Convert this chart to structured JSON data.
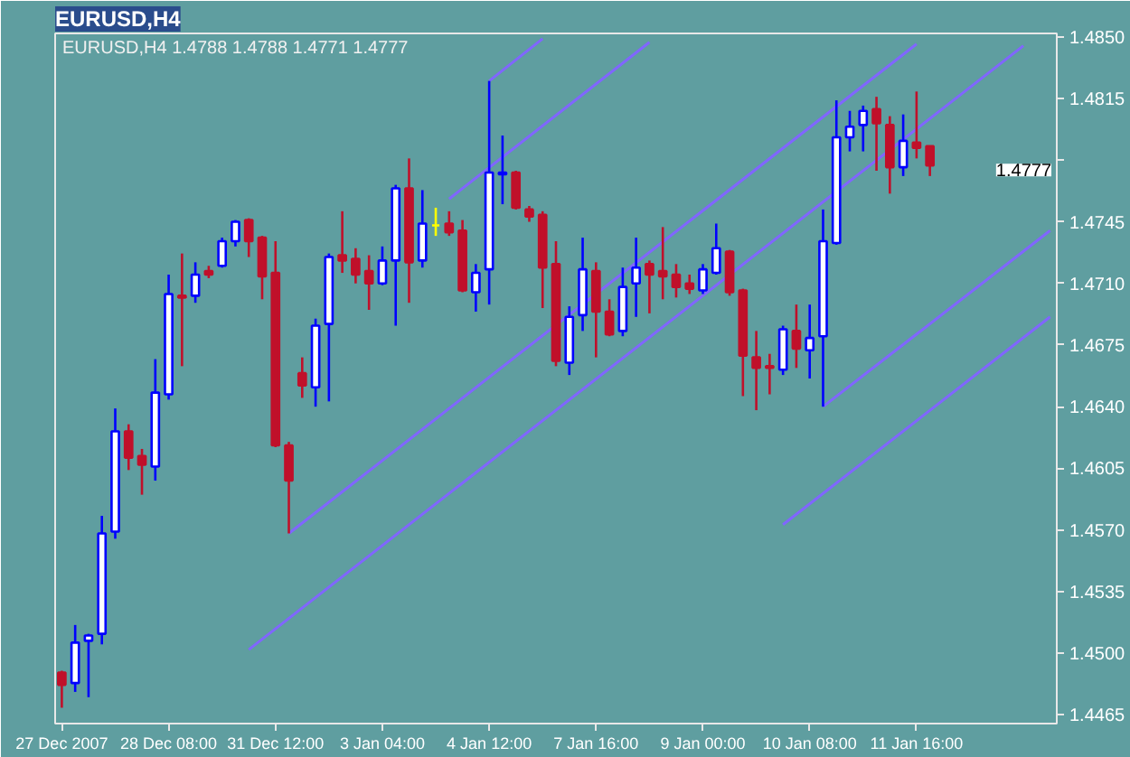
{
  "chart_data": {
    "type": "candlestick",
    "title": "EURUSD,H4",
    "annotations": [
      "EURUSD,H4  1.4788 1.4788 1.4771 1.4777",
      "1.4777"
    ],
    "categories": [
      "27 Dec 2007",
      null,
      null,
      null,
      null,
      null,
      null,
      null,
      "28 Dec 08:00",
      null,
      null,
      null,
      null,
      null,
      null,
      null,
      "31 Dec 12:00",
      null,
      null,
      null,
      null,
      null,
      null,
      null,
      "3 Jan 04:00",
      null,
      null,
      null,
      null,
      null,
      null,
      null,
      "4 Jan 12:00",
      null,
      null,
      null,
      null,
      null,
      null,
      null,
      "7 Jan 16:00",
      null,
      null,
      null,
      null,
      null,
      null,
      null,
      "9 Jan 00:00",
      null,
      null,
      null,
      null,
      null,
      null,
      null,
      "10 Jan 08:00",
      null,
      null,
      null,
      null,
      null,
      null,
      null,
      "11 Jan 16:00",
      null,
      null,
      null,
      null,
      null,
      null,
      null,
      null,
      null,
      null
    ],
    "ohlc": [
      [
        1.4489,
        1.449,
        1.4469,
        1.4482
      ],
      [
        1.4483,
        1.4516,
        1.4478,
        1.4506
      ],
      [
        1.4507,
        1.4511,
        1.4475,
        1.451
      ],
      [
        1.4511,
        1.4578,
        1.4505,
        1.4568
      ],
      [
        1.4569,
        1.4639,
        1.4565,
        1.4626
      ],
      [
        1.4626,
        1.463,
        1.4604,
        1.4611
      ],
      [
        1.4612,
        1.4616,
        1.459,
        1.4607
      ],
      [
        1.4606,
        1.4667,
        1.4598,
        1.4648
      ],
      [
        1.4647,
        1.4715,
        1.4644,
        1.4704
      ],
      [
        1.4703,
        1.4727,
        1.4663,
        1.4702
      ],
      [
        1.4703,
        1.4722,
        1.4699,
        1.4715
      ],
      [
        1.4717,
        1.472,
        1.4713,
        1.4715
      ],
      [
        1.472,
        1.4736,
        1.4719,
        1.4734
      ],
      [
        1.4734,
        1.4746,
        1.4731,
        1.4745
      ],
      [
        1.4746,
        1.4747,
        1.4725,
        1.4734
      ],
      [
        1.4736,
        1.4737,
        1.4701,
        1.4714
      ],
      [
        1.4716,
        1.4734,
        1.4617,
        1.4618
      ],
      [
        1.4618,
        1.462,
        1.4568,
        1.4598
      ],
      [
        1.4659,
        1.4668,
        1.4645,
        1.4652
      ],
      [
        1.4651,
        1.469,
        1.464,
        1.4686
      ],
      [
        1.4687,
        1.4727,
        1.4643,
        1.4725
      ],
      [
        1.4726,
        1.4751,
        1.4716,
        1.4723
      ],
      [
        1.4724,
        1.473,
        1.471,
        1.4715
      ],
      [
        1.4717,
        1.4726,
        1.4695,
        1.471
      ],
      [
        1.471,
        1.4731,
        1.4709,
        1.4723
      ],
      [
        1.4723,
        1.4766,
        1.4686,
        1.4764
      ],
      [
        1.4764,
        1.4781,
        1.4699,
        1.4722
      ],
      [
        1.4723,
        1.4763,
        1.4719,
        1.4744
      ],
      [
        1.4743,
        1.4753,
        1.4737,
        1.4743
      ],
      [
        1.4744,
        1.4751,
        1.4737,
        1.4739
      ],
      [
        1.474,
        1.4746,
        1.4705,
        1.4706
      ],
      [
        1.4705,
        1.4721,
        1.4694,
        1.4716
      ],
      [
        1.4718,
        1.4825,
        1.4698,
        1.4773
      ],
      [
        1.4772,
        1.4794,
        1.4755,
        1.4773
      ],
      [
        1.4773,
        1.4774,
        1.4752,
        1.4753
      ],
      [
        1.4752,
        1.4754,
        1.4745,
        1.4748
      ],
      [
        1.4749,
        1.4751,
        1.4696,
        1.4719
      ],
      [
        1.4721,
        1.4734,
        1.4663,
        1.4666
      ],
      [
        1.4665,
        1.4697,
        1.4658,
        1.4691
      ],
      [
        1.4692,
        1.4736,
        1.4683,
        1.4718
      ],
      [
        1.4717,
        1.4722,
        1.4668,
        1.4694
      ],
      [
        1.4694,
        1.4701,
        1.468,
        1.4681
      ],
      [
        1.4683,
        1.4719,
        1.468,
        1.4708
      ],
      [
        1.471,
        1.4736,
        1.4691,
        1.4719
      ],
      [
        1.4721,
        1.4723,
        1.4693,
        1.4715
      ],
      [
        1.4717,
        1.4742,
        1.4701,
        1.4714
      ],
      [
        1.4715,
        1.4721,
        1.4702,
        1.4708
      ],
      [
        1.471,
        1.4715,
        1.4704,
        1.4707
      ],
      [
        1.4706,
        1.4721,
        1.4704,
        1.4718
      ],
      [
        1.4716,
        1.4744,
        1.4715,
        1.473
      ],
      [
        1.4728,
        1.4729,
        1.4703,
        1.4705
      ],
      [
        1.4706,
        1.4707,
        1.4646,
        1.4669
      ],
      [
        1.4668,
        1.4683,
        1.4638,
        1.4662
      ],
      [
        1.4663,
        1.467,
        1.4647,
        1.4662
      ],
      [
        1.4661,
        1.4686,
        1.4658,
        1.4684
      ],
      [
        1.4683,
        1.4698,
        1.4662,
        1.4673
      ],
      [
        1.4672,
        1.4698,
        1.4656,
        1.4679
      ],
      [
        1.468,
        1.4752,
        1.464,
        1.4734
      ],
      [
        1.4733,
        1.4814,
        1.4732,
        1.4793
      ],
      [
        1.4793,
        1.4808,
        1.4785,
        1.4799
      ],
      [
        1.48,
        1.4811,
        1.4785,
        1.4808
      ],
      [
        1.4809,
        1.4816,
        1.4774,
        1.4801
      ],
      [
        1.48,
        1.4805,
        1.4761,
        1.4776
      ],
      [
        1.4776,
        1.4806,
        1.4771,
        1.4791
      ],
      [
        1.479,
        1.4819,
        1.4781,
        1.4787
      ],
      [
        1.4788,
        1.4788,
        1.4771,
        1.4777
      ],
      null,
      null,
      null,
      null,
      null,
      null,
      null,
      null,
      null
    ],
    "colors": [
      "#c0102a",
      "#0000ff",
      "#0000ff",
      "#0000ff",
      "#0000ff",
      "#c0102a",
      "#c0102a",
      "#0000ff",
      "#0000ff",
      "#c0102a",
      "#0000ff",
      "#c0102a",
      "#0000ff",
      "#0000ff",
      "#c0102a",
      "#c0102a",
      "#c0102a",
      "#c0102a",
      "#c0102a",
      "#0000ff",
      "#0000ff",
      "#c0102a",
      "#c0102a",
      "#c0102a",
      "#0000ff",
      "#0000ff",
      "#c0102a",
      "#0000ff",
      "#ffff00",
      "#c0102a",
      "#c0102a",
      "#0000ff",
      "#0000ff",
      "#0000ff",
      "#c0102a",
      "#c0102a",
      "#c0102a",
      "#c0102a",
      "#0000ff",
      "#0000ff",
      "#c0102a",
      "#c0102a",
      "#0000ff",
      "#0000ff",
      "#c0102a",
      "#c0102a",
      "#c0102a",
      "#c0102a",
      "#0000ff",
      "#0000ff",
      "#c0102a",
      "#c0102a",
      "#c0102a",
      "#c0102a",
      "#0000ff",
      "#c0102a",
      "#0000ff",
      "#0000ff",
      "#0000ff",
      "#0000ff",
      "#0000ff",
      "#c0102a",
      "#c0102a",
      "#0000ff",
      "#c0102a",
      "#c0102a",
      null,
      null,
      null,
      null,
      null,
      null,
      null,
      null,
      null
    ],
    "series": [
      {
        "type": "line",
        "color": "#8066ff",
        "values": [
          null,
          null,
          null,
          null,
          null,
          null,
          null,
          null,
          null,
          null,
          null,
          null,
          null,
          null,
          null,
          null,
          null,
          null,
          null,
          null,
          null,
          null,
          null,
          null,
          null,
          null,
          null,
          null,
          null,
          null,
          null,
          null,
          1.4825,
          null,
          null,
          null,
          1.4849,
          null,
          null,
          null,
          null,
          null,
          null,
          null,
          null,
          null,
          null,
          null,
          null,
          null,
          null,
          null,
          null,
          null,
          null,
          null,
          null,
          null,
          null,
          null,
          null,
          null,
          null,
          null,
          null,
          null,
          null,
          null,
          null,
          null,
          null,
          null,
          null,
          null,
          null
        ]
      },
      {
        "type": "line",
        "color": "#8066ff",
        "values": [
          null,
          null,
          null,
          null,
          null,
          null,
          null,
          null,
          null,
          null,
          null,
          null,
          null,
          null,
          null,
          null,
          null,
          null,
          null,
          null,
          null,
          null,
          null,
          null,
          null,
          null,
          null,
          null,
          null,
          1.4758,
          null,
          null,
          null,
          null,
          null,
          null,
          null,
          null,
          null,
          null,
          null,
          null,
          null,
          null,
          1.4847,
          null,
          null,
          null,
          null,
          null,
          null,
          null,
          null,
          null,
          null,
          null,
          null,
          null,
          null,
          null,
          null,
          null,
          null,
          null,
          null,
          null,
          null,
          null,
          null,
          null,
          null,
          null,
          null,
          null,
          null
        ]
      },
      {
        "type": "line",
        "color": "#8066ff",
        "values": [
          null,
          null,
          null,
          null,
          null,
          null,
          null,
          null,
          null,
          null,
          null,
          null,
          null,
          null,
          null,
          null,
          null,
          1.4568,
          null,
          null,
          null,
          null,
          null,
          null,
          null,
          null,
          null,
          null,
          null,
          null,
          null,
          null,
          null,
          null,
          null,
          null,
          null,
          null,
          null,
          null,
          null,
          null,
          null,
          null,
          null,
          null,
          null,
          null,
          null,
          null,
          null,
          null,
          null,
          null,
          null,
          null,
          null,
          null,
          null,
          null,
          null,
          null,
          null,
          null,
          1.4846,
          null,
          null,
          null,
          null,
          null,
          null,
          null,
          null,
          null,
          null
        ]
      },
      {
        "type": "line",
        "color": "#8066ff",
        "values": [
          null,
          null,
          null,
          null,
          null,
          null,
          null,
          null,
          null,
          null,
          null,
          null,
          null,
          null,
          1.4502,
          null,
          null,
          null,
          null,
          null,
          null,
          null,
          null,
          null,
          null,
          null,
          null,
          null,
          null,
          null,
          null,
          null,
          null,
          null,
          null,
          null,
          null,
          null,
          null,
          null,
          null,
          null,
          null,
          null,
          null,
          null,
          null,
          null,
          null,
          null,
          null,
          null,
          null,
          null,
          null,
          null,
          null,
          null,
          null,
          null,
          null,
          null,
          null,
          null,
          null,
          null,
          null,
          null,
          null,
          null,
          null,
          null,
          1.4845,
          null,
          null
        ]
      },
      {
        "type": "line",
        "color": "#8066ff",
        "values": [
          null,
          null,
          null,
          null,
          null,
          null,
          null,
          null,
          null,
          null,
          null,
          null,
          null,
          null,
          null,
          null,
          null,
          null,
          null,
          null,
          null,
          null,
          null,
          null,
          null,
          null,
          null,
          null,
          null,
          null,
          null,
          null,
          null,
          null,
          null,
          null,
          null,
          null,
          null,
          null,
          null,
          null,
          null,
          null,
          null,
          null,
          null,
          null,
          null,
          null,
          null,
          null,
          null,
          null,
          null,
          null,
          null,
          1.464,
          null,
          null,
          null,
          null,
          null,
          null,
          null,
          null,
          null,
          null,
          null,
          null,
          null,
          null,
          null,
          null,
          1.474
        ]
      },
      {
        "type": "line",
        "color": "#8066ff",
        "values": [
          null,
          null,
          null,
          null,
          null,
          null,
          null,
          null,
          null,
          null,
          null,
          null,
          null,
          null,
          null,
          null,
          null,
          null,
          null,
          null,
          null,
          null,
          null,
          null,
          null,
          null,
          null,
          null,
          null,
          null,
          null,
          null,
          null,
          null,
          null,
          null,
          null,
          null,
          null,
          null,
          null,
          null,
          null,
          null,
          null,
          null,
          null,
          null,
          null,
          null,
          null,
          null,
          null,
          null,
          1.4573,
          null,
          null,
          null,
          null,
          null,
          null,
          null,
          null,
          null,
          null,
          null,
          null,
          null,
          null,
          null,
          null,
          null,
          null,
          null,
          1.4691
        ]
      }
    ],
    "ylim": [
      1.446,
      1.4852
    ],
    "yticks": [
      {
        "value": 1.4465,
        "label": "1.4465"
      },
      {
        "value": 1.45,
        "label": "1.4500"
      },
      {
        "value": 1.4535,
        "label": "1.4535"
      },
      {
        "value": 1.457,
        "label": "1.4570"
      },
      {
        "value": 1.4605,
        "label": "1.4605"
      },
      {
        "value": 1.464,
        "label": "1.4640"
      },
      {
        "value": 1.4675,
        "label": "1.4675"
      },
      {
        "value": 1.471,
        "label": "1.4710"
      },
      {
        "value": 1.4745,
        "label": "1.4745"
      },
      {
        "value": 1.478,
        "label": null
      },
      {
        "value": 1.4815,
        "label": "1.4815"
      },
      {
        "value": 1.485,
        "label": "1.4850"
      }
    ],
    "grid": false
  }
}
